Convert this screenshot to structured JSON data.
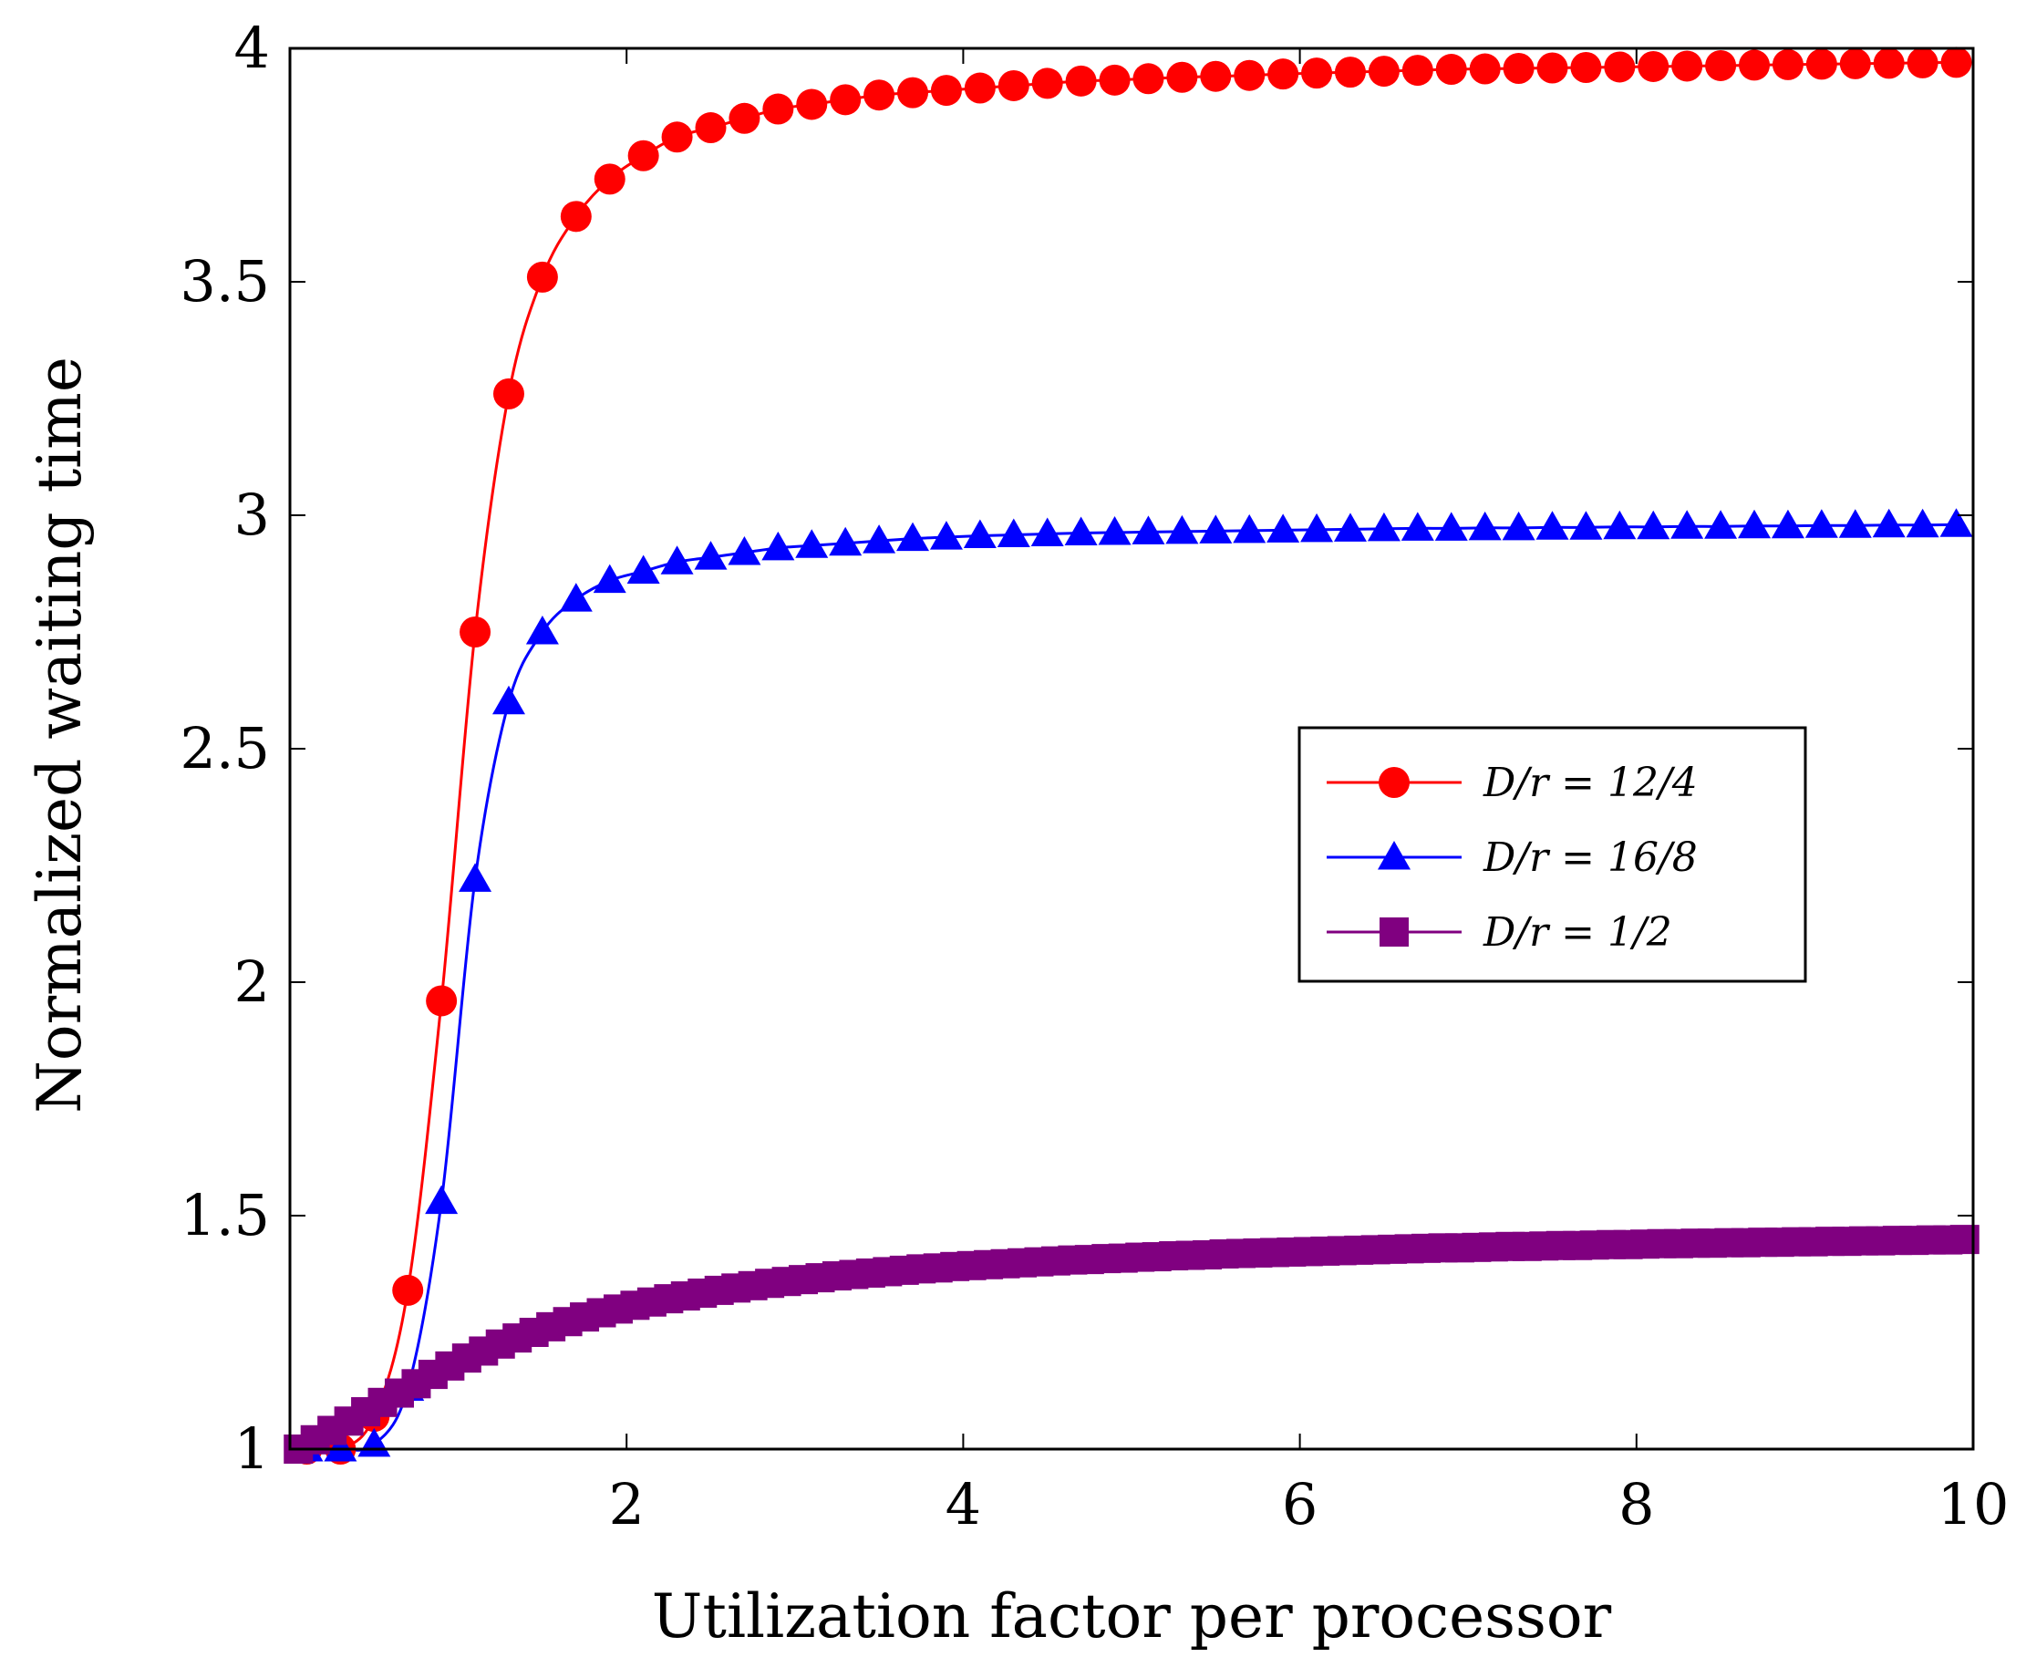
{
  "chart_data": {
    "type": "line",
    "title": "",
    "xlabel": "Utilization factor per processor",
    "ylabel": "Normalized waiting time",
    "xlim": [
      0,
      10
    ],
    "ylim": [
      1,
      4
    ],
    "xticks": [
      2,
      4,
      6,
      8,
      10
    ],
    "yticks": [
      1,
      1.5,
      2,
      2.5,
      3,
      3.5,
      4
    ],
    "xtick_labels": [
      "2",
      "4",
      "6",
      "8",
      "10"
    ],
    "ytick_labels": [
      "1",
      "1.5",
      "2",
      "2.5",
      "3",
      "3.5",
      "4"
    ],
    "grid": false,
    "legend_position": "center-right",
    "series": [
      {
        "name": "D/r = 12/4",
        "color": "#ff0000",
        "marker": "circle",
        "x": [
          0.1,
          0.3,
          0.5,
          0.7,
          0.9,
          1.1,
          1.3,
          1.5,
          1.7,
          1.9,
          2.1,
          2.3,
          2.5,
          2.7,
          2.9,
          3.1,
          3.3,
          3.5,
          3.7,
          3.9,
          4.1,
          4.3,
          4.5,
          4.7,
          4.9,
          5.1,
          5.3,
          5.5,
          5.7,
          5.9,
          6.1,
          6.3,
          6.5,
          6.7,
          6.9,
          7.1,
          7.3,
          7.5,
          7.7,
          7.9,
          8.1,
          8.3,
          8.5,
          8.7,
          8.9,
          9.1,
          9.3,
          9.5,
          9.7,
          9.9
        ],
        "values": [
          1.0,
          1.0,
          1.07,
          1.34,
          1.96,
          2.75,
          3.26,
          3.51,
          3.64,
          3.72,
          3.77,
          3.81,
          3.83,
          3.85,
          3.87,
          3.88,
          3.89,
          3.9,
          3.905,
          3.91,
          3.915,
          3.92,
          3.925,
          3.93,
          3.932,
          3.935,
          3.938,
          3.94,
          3.942,
          3.945,
          3.947,
          3.949,
          3.951,
          3.953,
          3.955,
          3.956,
          3.957,
          3.958,
          3.959,
          3.96,
          3.961,
          3.962,
          3.963,
          3.964,
          3.965,
          3.966,
          3.967,
          3.968,
          3.969,
          3.97
        ]
      },
      {
        "name": "D/r = 16/8",
        "color": "#0000ff",
        "marker": "triangle",
        "x": [
          0.1,
          0.3,
          0.5,
          0.7,
          0.9,
          1.1,
          1.3,
          1.5,
          1.7,
          1.9,
          2.1,
          2.3,
          2.5,
          2.7,
          2.9,
          3.1,
          3.3,
          3.5,
          3.7,
          3.9,
          4.1,
          4.3,
          4.5,
          4.7,
          4.9,
          5.1,
          5.3,
          5.5,
          5.7,
          5.9,
          6.1,
          6.3,
          6.5,
          6.7,
          6.9,
          7.1,
          7.3,
          7.5,
          7.7,
          7.9,
          8.1,
          8.3,
          8.5,
          8.7,
          8.9,
          9.1,
          9.3,
          9.5,
          9.7,
          9.9
        ],
        "values": [
          1.0,
          1.0,
          1.01,
          1.13,
          1.53,
          2.22,
          2.6,
          2.75,
          2.82,
          2.86,
          2.88,
          2.9,
          2.91,
          2.92,
          2.93,
          2.935,
          2.94,
          2.945,
          2.95,
          2.953,
          2.956,
          2.958,
          2.96,
          2.962,
          2.963,
          2.964,
          2.965,
          2.966,
          2.967,
          2.968,
          2.969,
          2.97,
          2.971,
          2.972,
          2.972,
          2.973,
          2.973,
          2.974,
          2.974,
          2.975,
          2.975,
          2.976,
          2.976,
          2.977,
          2.977,
          2.978,
          2.978,
          2.979,
          2.979,
          2.98
        ]
      },
      {
        "name": "D/r = 1/2",
        "color": "#800080",
        "marker": "square",
        "x": [
          0.05,
          0.15,
          0.25,
          0.35,
          0.45,
          0.55,
          0.65,
          0.75,
          0.85,
          0.95,
          1.05,
          1.15,
          1.25,
          1.35,
          1.45,
          1.55,
          1.65,
          1.75,
          1.85,
          1.95,
          2.05,
          2.15,
          2.25,
          2.35,
          2.45,
          2.55,
          2.65,
          2.75,
          2.85,
          2.95,
          3.05,
          3.15,
          3.25,
          3.35,
          3.45,
          3.55,
          3.65,
          3.75,
          3.85,
          3.95,
          4.05,
          4.15,
          4.25,
          4.35,
          4.45,
          4.55,
          4.65,
          4.75,
          4.85,
          4.95,
          5.05,
          5.15,
          5.25,
          5.35,
          5.45,
          5.55,
          5.65,
          5.75,
          5.85,
          5.95,
          6.05,
          6.15,
          6.25,
          6.35,
          6.45,
          6.55,
          6.65,
          6.75,
          6.85,
          6.95,
          7.05,
          7.15,
          7.25,
          7.35,
          7.45,
          7.55,
          7.65,
          7.75,
          7.85,
          7.95,
          8.05,
          8.15,
          8.25,
          8.35,
          8.45,
          8.55,
          8.65,
          8.75,
          8.85,
          8.95,
          9.05,
          9.15,
          9.25,
          9.35,
          9.45,
          9.55,
          9.65,
          9.75,
          9.85,
          9.95
        ],
        "values": [
          1.0,
          1.02,
          1.04,
          1.06,
          1.08,
          1.1,
          1.12,
          1.14,
          1.16,
          1.178,
          1.195,
          1.21,
          1.225,
          1.238,
          1.25,
          1.262,
          1.273,
          1.283,
          1.292,
          1.3,
          1.308,
          1.315,
          1.322,
          1.328,
          1.334,
          1.34,
          1.345,
          1.35,
          1.355,
          1.359,
          1.363,
          1.367,
          1.371,
          1.374,
          1.377,
          1.38,
          1.383,
          1.386,
          1.388,
          1.391,
          1.393,
          1.395,
          1.397,
          1.399,
          1.401,
          1.403,
          1.405,
          1.406,
          1.408,
          1.409,
          1.411,
          1.412,
          1.414,
          1.415,
          1.416,
          1.418,
          1.419,
          1.42,
          1.421,
          1.422,
          1.423,
          1.424,
          1.425,
          1.426,
          1.427,
          1.428,
          1.429,
          1.43,
          1.431,
          1.431,
          1.432,
          1.433,
          1.434,
          1.434,
          1.435,
          1.436,
          1.436,
          1.437,
          1.438,
          1.438,
          1.439,
          1.44,
          1.44,
          1.441,
          1.441,
          1.442,
          1.442,
          1.443,
          1.443,
          1.444,
          1.444,
          1.445,
          1.445,
          1.446,
          1.446,
          1.447,
          1.447,
          1.448,
          1.448,
          1.449
        ]
      }
    ]
  }
}
